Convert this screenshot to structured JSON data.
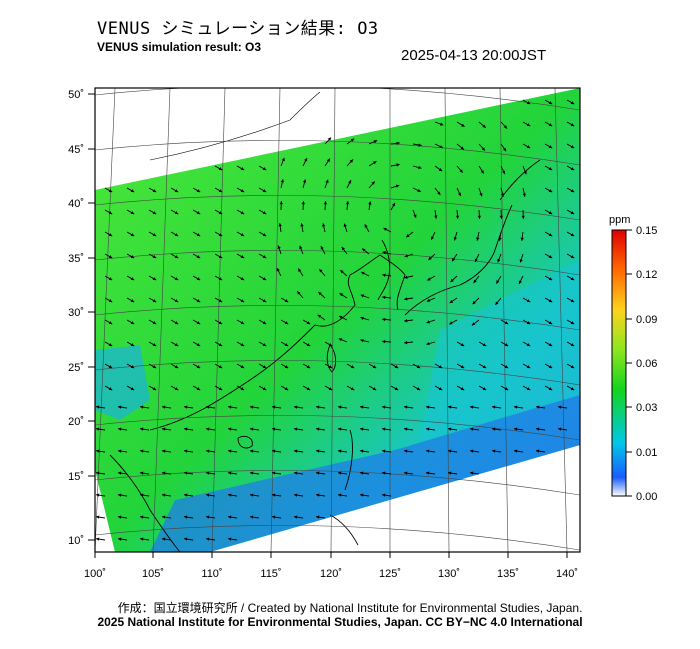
{
  "header": {
    "title_jp": "VENUS シミュレーション結果: O3",
    "title_en": "VENUS simulation result: O3",
    "timestamp": "2025-04-13 20:00JST"
  },
  "map": {
    "lat_labels": [
      "50˚",
      "45˚",
      "40˚",
      "35˚",
      "30˚",
      "25˚",
      "20˚",
      "15˚",
      "10˚"
    ],
    "lon_labels": [
      "100˚",
      "105˚",
      "110˚",
      "115˚",
      "120˚",
      "125˚",
      "130˚",
      "135˚",
      "140˚"
    ]
  },
  "colorbar": {
    "unit": "ppm",
    "labels": [
      "0.15",
      "0.12",
      "0.09",
      "0.06",
      "0.03",
      "0.01",
      "0.00"
    ],
    "colors": [
      "#ffffff",
      "#1a5cff",
      "#00c8e8",
      "#14d41e",
      "#8ce61e",
      "#ffd21e",
      "#ff6a00",
      "#e00000"
    ]
  },
  "footer": {
    "credit_jp": "作成：国立環境研究所 / Created by National Institute for Environmental Studies, Japan.",
    "credit_en": "2025 National Institute for Environmental Studies, Japan. CC BY−NC 4.0 International"
  }
}
